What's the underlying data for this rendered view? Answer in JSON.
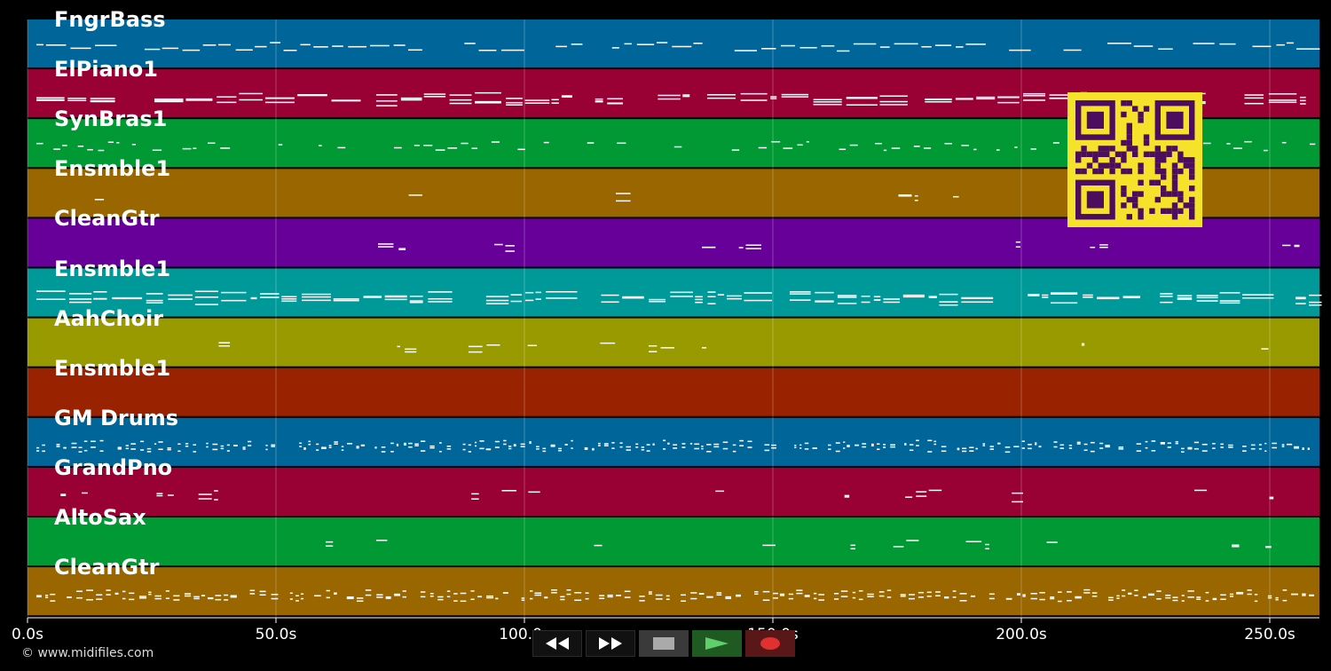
{
  "tracks": [
    {
      "name": "FngrBass",
      "color": "#00669a",
      "notes": "melodic-line"
    },
    {
      "name": "ElPiano1",
      "color": "#990033",
      "notes": "chords"
    },
    {
      "name": "SynBras1",
      "color": "#009933",
      "notes": "phrases"
    },
    {
      "name": "Ensmble1",
      "color": "#996600",
      "notes": "sparse"
    },
    {
      "name": "CleanGtr",
      "color": "#660099",
      "notes": "dots"
    },
    {
      "name": "Ensmble1",
      "color": "#009999",
      "notes": "chords"
    },
    {
      "name": "AahChoir",
      "color": "#999900",
      "notes": "sparse"
    },
    {
      "name": "Ensmble1",
      "color": "#992200",
      "notes": "long-lines"
    },
    {
      "name": "GM Drums",
      "color": "#00669a",
      "notes": "drums"
    },
    {
      "name": "GrandPno",
      "color": "#990033",
      "notes": "sparse"
    },
    {
      "name": "AltoSax",
      "color": "#009933",
      "notes": "sparse"
    },
    {
      "name": "CleanGtr",
      "color": "#996600",
      "notes": "rhythm"
    }
  ],
  "time_axis": {
    "ticks": [
      "0.0s",
      "50.0s",
      "100.0s",
      "150.0s",
      "200.0s",
      "250.0s"
    ],
    "tick_seconds": [
      0,
      50,
      100,
      150,
      200,
      250
    ],
    "max_seconds": 260
  },
  "copyright": "© www.midifiles.com",
  "transport": {
    "rewind_icon": "rewind-icon",
    "fast_forward_icon": "fast-forward-icon",
    "stop_icon": "stop-icon",
    "play_icon": "play-icon",
    "record_icon": "record-icon"
  },
  "qr_code": {
    "icon": "qr-code",
    "color": "#f5e22a",
    "module_color": "#4d0d5e"
  }
}
